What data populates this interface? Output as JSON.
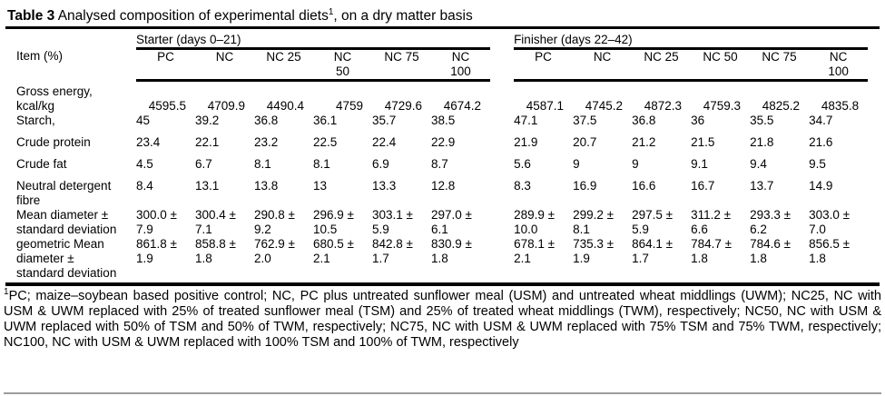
{
  "title": {
    "bold": "Table 3",
    "before_sup": " Analysed composition of experimental diets",
    "sup": "1",
    "after_sup": ", on a dry matter basis"
  },
  "table": {
    "item_header": "Item (%)",
    "starter": {
      "label": "Starter (days 0–21)",
      "columns": [
        "PC",
        "NC",
        "NC 25",
        "NC\n50",
        "NC 75",
        "NC\n100"
      ]
    },
    "finisher": {
      "label": "Finisher (days 22–42)",
      "columns": [
        "PC",
        "NC",
        "NC 25",
        "NC 50",
        "NC 75",
        "NC\n100"
      ]
    },
    "rows": [
      {
        "item": "Gross energy,\nkcal/kg",
        "starter": [
          "4595.5",
          "4709.9",
          "4490.4",
          "4759",
          "4729.6",
          "4674.2"
        ],
        "finisher": [
          "4587.1",
          "4745.2",
          "4872.3",
          "4759.3",
          "4825.2",
          "4835.8"
        ]
      },
      {
        "item": "Starch,",
        "starter": [
          "45",
          "39.2",
          "36.8",
          "36.1",
          "35.7",
          "38.5"
        ],
        "finisher": [
          "47.1",
          "37.5",
          "36.8",
          "36",
          "35.5",
          "34.7"
        ]
      },
      {
        "item": "Crude protein",
        "starter": [
          "23.4",
          "22.1",
          "23.2",
          "22.5",
          "22.4",
          "22.9"
        ],
        "finisher": [
          "21.9",
          "20.7",
          "21.2",
          "21.5",
          "21.8",
          "21.6"
        ]
      },
      {
        "item": "Crude fat",
        "starter": [
          "4.5",
          "6.7",
          "8.1",
          "8.1",
          "6.9",
          "8.7"
        ],
        "finisher": [
          "5.6",
          "9",
          "9",
          "9.1",
          "9.4",
          "9.5"
        ]
      },
      {
        "item": "Neutral detergent\nfibre",
        "starter": [
          "8.4",
          "13.1",
          "13.8",
          "13",
          "13.3",
          "12.8"
        ],
        "finisher": [
          "8.3",
          "16.9",
          "16.6",
          "16.7",
          "13.7",
          "14.9"
        ]
      },
      {
        "item": "Mean diameter ±\nstandard deviation",
        "starter": [
          "300.0 ±\n7.9",
          "300.4 ±\n7.1",
          "290.8 ±\n9.2",
          "296.9 ±\n10.5",
          "303.1 ±\n5.9",
          "297.0 ±\n6.1"
        ],
        "finisher": [
          "289.9 ±\n10.0",
          "299.2 ±\n8.1",
          "297.5 ±\n5.9",
          "311.2 ±\n6.6",
          "293.3 ±\n6.2",
          "303.0 ±\n7.0"
        ]
      },
      {
        "item": "geometric Mean\ndiameter ±\nstandard deviation",
        "starter": [
          "861.8 ±\n1.9",
          "858.8 ±\n1.8",
          "762.9 ±\n2.0",
          "680.5 ±\n2.1",
          "842.8 ±\n1.7",
          "830.9 ±\n1.8"
        ],
        "finisher": [
          "678.1 ±\n2.1",
          "735.3 ±\n1.9",
          "864.1 ±\n1.7",
          "784.7 ±\n1.8",
          "784.6 ±\n1.8",
          "856.5 ±\n1.8"
        ]
      }
    ]
  },
  "footnote": {
    "sup": "1",
    "text": "PC; maize–soybean based positive control; NC, PC plus untreated sunflower meal (USM) and untreated wheat middlings (UWM); NC25, NC with USM & UWM replaced with 25% of treated sunflower meal (TSM) and 25% of treated wheat middlings (TWM), respectively; NC50, NC with USM & UWM replaced with 50% of TSM and 50% of TWM, respectively; NC75, NC with USM & UWM replaced with 75% TSM and 75% TWM, respectively; NC100, NC with USM & UWM replaced with 100% TSM and 100% of TWM, respectively"
  }
}
